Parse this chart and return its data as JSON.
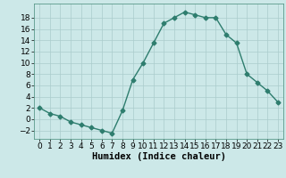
{
  "x": [
    0,
    1,
    2,
    3,
    4,
    5,
    6,
    7,
    8,
    9,
    10,
    11,
    12,
    13,
    14,
    15,
    16,
    17,
    18,
    19,
    20,
    21,
    22,
    23
  ],
  "y": [
    2,
    1,
    0.5,
    -0.5,
    -1,
    -1.5,
    -2,
    -2.5,
    1.5,
    7,
    10,
    13.5,
    17,
    18,
    19,
    18.5,
    18,
    18,
    15,
    13.5,
    8,
    6.5,
    5,
    3
  ],
  "line_color": "#2e7d6e",
  "marker": "D",
  "marker_size": 2.5,
  "bg_color": "#cce8e8",
  "grid_color": "#aacccc",
  "xlabel": "Humidex (Indice chaleur)",
  "xlim": [
    -0.5,
    23.5
  ],
  "ylim": [
    -3.5,
    20.5
  ],
  "yticks": [
    -2,
    0,
    2,
    4,
    6,
    8,
    10,
    12,
    14,
    16,
    18
  ],
  "xticks": [
    0,
    1,
    2,
    3,
    4,
    5,
    6,
    7,
    8,
    9,
    10,
    11,
    12,
    13,
    14,
    15,
    16,
    17,
    18,
    19,
    20,
    21,
    22,
    23
  ],
  "xlabel_fontsize": 7.5,
  "tick_fontsize": 6.5
}
